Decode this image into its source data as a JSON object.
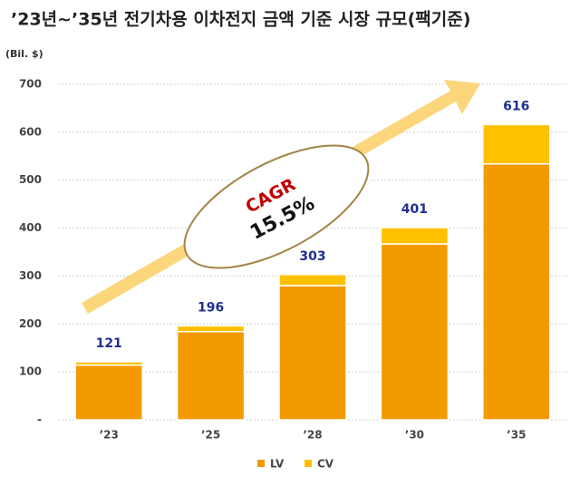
{
  "chart_data": {
    "type": "stacked_bar",
    "title": "’23년~’35년 전기차용 이차전지 금액 기준 시장 규모(팩기준)",
    "y_label": "(Bil. $)",
    "categories": [
      "’23",
      "’25",
      "’28",
      "’30",
      "’35"
    ],
    "series": [
      {
        "name": "LV",
        "color": "#F39A00",
        "values": [
          114,
          184,
          280,
          367,
          534
        ]
      },
      {
        "name": "CV",
        "color": "#FFC000",
        "values": [
          7,
          12,
          23,
          34,
          82
        ]
      }
    ],
    "totals": [
      121,
      196,
      303,
      401,
      616
    ],
    "ylim": [
      0,
      700
    ],
    "yticks": [
      {
        "value": 0,
        "label": "-"
      },
      100,
      200,
      300,
      400,
      500,
      600,
      700
    ],
    "grid": true,
    "annotation": {
      "line1": "CAGR",
      "line2": "15.5%"
    }
  }
}
